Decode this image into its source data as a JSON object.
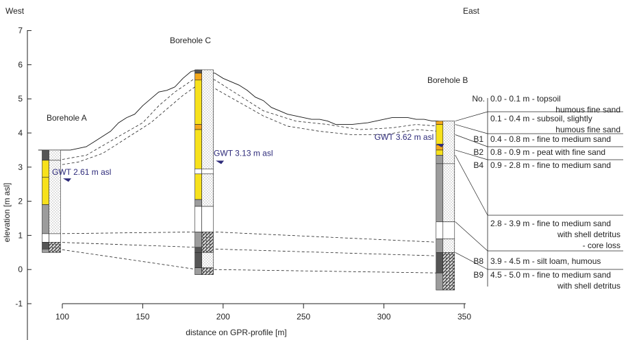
{
  "chart_data": {
    "type": "diagram",
    "orientation": {
      "left": "West",
      "right": "East"
    },
    "xlabel": "distance on GPR-profile [m]",
    "ylabel": "elevation [m asl]",
    "xlim": [
      85,
      350
    ],
    "ylim": [
      -1,
      7
    ],
    "xticks": [
      100,
      150,
      200,
      250,
      300,
      350
    ],
    "yticks": [
      -1,
      0,
      1,
      2,
      3,
      4,
      5,
      6,
      7
    ],
    "colors": {
      "sand": "#ffffff",
      "yellow": "#f7e11c",
      "orange": "#f3a81a",
      "gray": "#9c9c9c",
      "dark": "#555555",
      "gwt": "#2d2a7a"
    },
    "boreholes": [
      {
        "name": "Borehole A",
        "x": 90,
        "top": 3.5,
        "bottom": 0.5,
        "gwt_label": "GWT 2.61 m asl",
        "gwt": 2.61,
        "left_col": [
          {
            "from": 3.5,
            "to": 3.2,
            "fill": "dark"
          },
          {
            "from": 3.2,
            "to": 2.7,
            "fill": "yellow"
          },
          {
            "from": 2.7,
            "to": 1.9,
            "fill": "yellow"
          },
          {
            "from": 1.9,
            "to": 1.05,
            "fill": "gray"
          },
          {
            "from": 1.05,
            "to": 0.8,
            "fill": "white"
          },
          {
            "from": 0.8,
            "to": 0.6,
            "fill": "dark"
          },
          {
            "from": 0.6,
            "to": 0.5,
            "fill": "gray"
          }
        ],
        "right_col": [
          {
            "from": 3.5,
            "to": 3.2,
            "fill": "dots"
          },
          {
            "from": 3.2,
            "to": 1.05,
            "fill": "dots"
          },
          {
            "from": 1.05,
            "to": 0.8,
            "fill": "white"
          },
          {
            "from": 0.8,
            "to": 0.5,
            "fill": "hatch"
          }
        ]
      },
      {
        "name": "Borehole C",
        "x": 185,
        "top": 5.85,
        "bottom": -0.15,
        "gwt_label": "GWT 3.13 m asl",
        "gwt": 3.13,
        "left_col": [
          {
            "from": 5.85,
            "to": 5.75,
            "fill": "dark"
          },
          {
            "from": 5.75,
            "to": 5.55,
            "fill": "orange"
          },
          {
            "from": 5.55,
            "to": 4.25,
            "fill": "yellow"
          },
          {
            "from": 4.25,
            "to": 4.1,
            "fill": "orange"
          },
          {
            "from": 4.1,
            "to": 2.95,
            "fill": "yellow"
          },
          {
            "from": 2.95,
            "to": 2.8,
            "fill": "white"
          },
          {
            "from": 2.8,
            "to": 2.05,
            "fill": "yellow"
          },
          {
            "from": 2.05,
            "to": 1.85,
            "fill": "gray"
          },
          {
            "from": 1.85,
            "to": 1.1,
            "fill": "white"
          },
          {
            "from": 1.1,
            "to": 0.65,
            "fill": "gray"
          },
          {
            "from": 0.65,
            "to": 0.5,
            "fill": "dark"
          },
          {
            "from": 0.5,
            "to": 0.05,
            "fill": "dark"
          },
          {
            "from": 0.05,
            "to": -0.15,
            "fill": "gray"
          }
        ],
        "right_col": [
          {
            "from": 5.85,
            "to": 2.95,
            "fill": "dots"
          },
          {
            "from": 2.95,
            "to": 2.8,
            "fill": "white"
          },
          {
            "from": 2.8,
            "to": 1.85,
            "fill": "dots"
          },
          {
            "from": 1.85,
            "to": 1.1,
            "fill": "white"
          },
          {
            "from": 1.1,
            "to": 0.5,
            "fill": "hatch"
          },
          {
            "from": 0.5,
            "to": 0.05,
            "fill": "dots"
          },
          {
            "from": 0.05,
            "to": -0.15,
            "fill": "hatch"
          }
        ]
      },
      {
        "name": "Borehole B",
        "x": 335,
        "top": 4.35,
        "bottom": -0.6,
        "gwt_label": "GWT 3.62 m asl",
        "gwt": 3.62,
        "left_col": [
          {
            "from": 4.35,
            "to": 4.25,
            "fill": "orange"
          },
          {
            "from": 4.25,
            "to": 3.65,
            "fill": "yellow"
          },
          {
            "from": 3.65,
            "to": 3.5,
            "fill": "orange"
          },
          {
            "from": 3.5,
            "to": 3.35,
            "fill": "yellow"
          },
          {
            "from": 3.35,
            "to": 3.1,
            "fill": "gray"
          },
          {
            "from": 3.1,
            "to": 1.4,
            "fill": "gray"
          },
          {
            "from": 1.4,
            "to": 0.9,
            "fill": "white"
          },
          {
            "from": 0.9,
            "to": 0.5,
            "fill": "gray"
          },
          {
            "from": 0.5,
            "to": -0.1,
            "fill": "dark"
          },
          {
            "from": -0.1,
            "to": -0.6,
            "fill": "gray"
          }
        ],
        "right_col": [
          {
            "from": 4.35,
            "to": 3.1,
            "fill": "dots"
          },
          {
            "from": 3.1,
            "to": 1.4,
            "fill": "dots"
          },
          {
            "from": 1.4,
            "to": 0.9,
            "fill": "white"
          },
          {
            "from": 0.9,
            "to": 0.5,
            "fill": "dots"
          },
          {
            "from": 0.5,
            "to": -0.6,
            "fill": "hatch"
          }
        ]
      }
    ],
    "surface": [
      [
        85,
        3.5
      ],
      [
        105,
        3.5
      ],
      [
        115,
        3.6
      ],
      [
        120,
        3.75
      ],
      [
        125,
        3.9
      ],
      [
        130,
        4.05
      ],
      [
        135,
        4.3
      ],
      [
        140,
        4.45
      ],
      [
        145,
        4.55
      ],
      [
        150,
        4.8
      ],
      [
        155,
        5.0
      ],
      [
        160,
        5.2
      ],
      [
        165,
        5.25
      ],
      [
        170,
        5.35
      ],
      [
        175,
        5.6
      ],
      [
        180,
        5.8
      ],
      [
        184,
        5.85
      ],
      [
        195,
        5.75
      ],
      [
        200,
        5.6
      ],
      [
        210,
        5.4
      ],
      [
        215,
        5.25
      ],
      [
        220,
        5.05
      ],
      [
        225,
        4.95
      ],
      [
        230,
        4.75
      ],
      [
        235,
        4.65
      ],
      [
        240,
        4.55
      ],
      [
        245,
        4.5
      ],
      [
        250,
        4.45
      ],
      [
        255,
        4.4
      ],
      [
        260,
        4.4
      ],
      [
        265,
        4.35
      ],
      [
        270,
        4.25
      ],
      [
        280,
        4.25
      ],
      [
        290,
        4.3
      ],
      [
        295,
        4.35
      ],
      [
        300,
        4.4
      ],
      [
        305,
        4.45
      ],
      [
        315,
        4.45
      ],
      [
        320,
        4.4
      ],
      [
        325,
        4.4
      ],
      [
        330,
        4.35
      ],
      [
        334,
        4.35
      ]
    ],
    "interfaces_dashed": [
      [
        [
          97,
          3.2
        ],
        [
          115,
          3.35
        ],
        [
          135,
          3.9
        ],
        [
          150,
          4.3
        ],
        [
          160,
          4.8
        ],
        [
          170,
          5.2
        ],
        [
          184,
          5.65
        ],
        [
          195,
          5.55
        ],
        [
          210,
          5.1
        ],
        [
          225,
          4.65
        ],
        [
          245,
          4.35
        ],
        [
          265,
          4.25
        ],
        [
          285,
          4.1
        ],
        [
          305,
          4.15
        ],
        [
          320,
          4.25
        ],
        [
          334,
          4.2
        ]
      ],
      [
        [
          97,
          3.05
        ],
        [
          110,
          3.15
        ],
        [
          125,
          3.4
        ],
        [
          140,
          3.85
        ],
        [
          155,
          4.3
        ],
        [
          165,
          4.7
        ],
        [
          175,
          5.1
        ],
        [
          184,
          5.4
        ],
        [
          195,
          5.3
        ],
        [
          210,
          4.9
        ],
        [
          225,
          4.5
        ],
        [
          240,
          4.2
        ],
        [
          260,
          4.05
        ],
        [
          280,
          3.95
        ],
        [
          300,
          3.95
        ],
        [
          320,
          4.1
        ],
        [
          334,
          4.05
        ]
      ],
      [
        [
          97,
          1.05
        ],
        [
          184,
          1.1
        ],
        [
          195,
          1.1
        ],
        [
          334,
          0.8
        ]
      ],
      [
        [
          97,
          0.8
        ],
        [
          184,
          0.65
        ],
        [
          195,
          0.6
        ],
        [
          334,
          0.4
        ]
      ],
      [
        [
          97,
          0.6
        ],
        [
          184,
          0.0
        ],
        [
          195,
          0.0
        ],
        [
          334,
          -0.1
        ]
      ]
    ],
    "legend": {
      "header": "No.",
      "rows": [
        {
          "code": "",
          "lines": [
            "0.0 - 0.1 m - topsoil",
            "humous fine sand"
          ]
        },
        {
          "code": "",
          "lines": [
            "0.1 - 0.4 m - subsoil, slightly",
            "humous fine sand"
          ]
        },
        {
          "code": "B1",
          "lines": [
            "0.4 - 0.8 m - fine to medium sand"
          ]
        },
        {
          "code": "B2",
          "lines": [
            "0.8 - 0.9 m - peat with fine sand"
          ]
        },
        {
          "code": "B4",
          "lines": [
            "0.9 - 2.8 m - fine to medium sand"
          ]
        },
        {
          "code": "",
          "lines": [
            "2.8 - 3.9 m - fine to medium sand",
            "with shell detritus",
            "- core loss"
          ]
        },
        {
          "code": "B8",
          "lines": [
            "3.9 - 4.5 m - silt loam, humous"
          ]
        },
        {
          "code": "B9",
          "lines": [
            "4.5 - 5.0 m - fine to medium sand",
            "with shell detritus"
          ]
        }
      ]
    }
  }
}
